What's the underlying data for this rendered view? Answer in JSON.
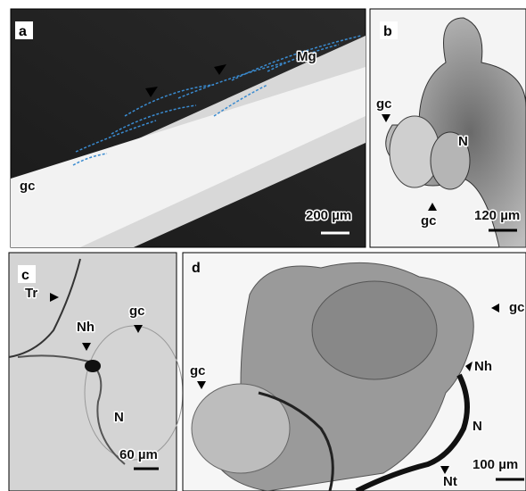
{
  "panels": [
    {
      "label": "a",
      "annotations": [
        "Mg",
        "gc"
      ],
      "scale_bar": "200 µm"
    },
    {
      "label": "b",
      "annotations": [
        "gc",
        "gc",
        "N"
      ],
      "scale_bar": "120 µm"
    },
    {
      "label": "c",
      "annotations": [
        "Tr",
        "Nh",
        "gc",
        "N"
      ],
      "scale_bar": "60 µm"
    },
    {
      "label": "d",
      "annotations": [
        "gc",
        "gc",
        "Nh",
        "N",
        "Nt"
      ],
      "scale_bar": "100 µm"
    }
  ]
}
